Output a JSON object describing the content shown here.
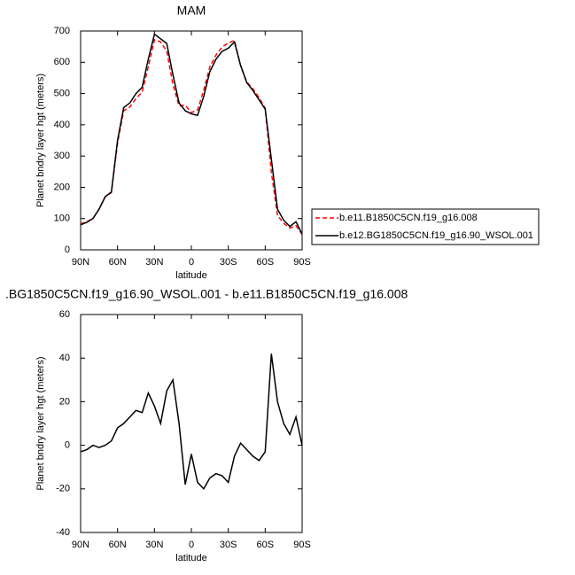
{
  "chart_data": [
    {
      "type": "line",
      "title": "MAM",
      "xlabel": "latitude",
      "ylabel": "Planet bndry layer hgt (meters)",
      "x": [
        90,
        85,
        80,
        75,
        70,
        65,
        60,
        55,
        50,
        45,
        40,
        35,
        30,
        25,
        20,
        15,
        10,
        5,
        0,
        -5,
        -10,
        -15,
        -20,
        -25,
        -30,
        -35,
        -40,
        -45,
        -50,
        -55,
        -60,
        -65,
        -70,
        -75,
        -80,
        -85,
        -90
      ],
      "series": [
        {
          "name": "b.e11.B1850C5CN.f19_g16.008",
          "color": "#ff0000",
          "line_style": "dashed",
          "values": [
            83,
            90,
            100,
            131,
            170,
            183,
            342,
            445,
            457,
            484,
            505,
            586,
            672,
            665,
            635,
            530,
            460,
            463,
            439,
            447,
            510,
            585,
            623,
            649,
            662,
            670,
            589,
            537,
            515,
            487,
            453,
            248,
            110,
            85,
            70,
            77,
            50
          ]
        },
        {
          "name": "b.e12.BG1850C5CN.f19_g16.90_WSOL.001",
          "color": "#000000",
          "line_style": "solid",
          "values": [
            80,
            88,
            100,
            130,
            170,
            185,
            350,
            455,
            470,
            500,
            520,
            610,
            690,
            675,
            660,
            560,
            470,
            445,
            435,
            430,
            490,
            570,
            610,
            635,
            645,
            665,
            590,
            535,
            510,
            480,
            450,
            290,
            130,
            95,
            75,
            90,
            50
          ]
        }
      ],
      "xlim": [
        90,
        -90
      ],
      "xticks": [
        {
          "value": 90,
          "label": "90N"
        },
        {
          "value": 60,
          "label": "60N"
        },
        {
          "value": 30,
          "label": "30N"
        },
        0,
        {
          "value": -30,
          "label": "30S"
        },
        {
          "value": -60,
          "label": "60S"
        },
        {
          "value": -90,
          "label": "90S"
        }
      ],
      "ylim": [
        0,
        700
      ],
      "yticks": [
        0,
        100,
        200,
        300,
        400,
        500,
        600,
        700
      ],
      "legend": "right"
    },
    {
      "type": "line",
      "title": ".BG1850C5CN.f19_g16.90_WSOL.001 - b.e11.B1850C5CN.f19_g16.008",
      "xlabel": "latitude",
      "ylabel": "Planet bndry layer hgt (meters)",
      "x": [
        90,
        85,
        80,
        75,
        70,
        65,
        60,
        55,
        50,
        45,
        40,
        35,
        30,
        25,
        20,
        15,
        10,
        5,
        0,
        -5,
        -10,
        -15,
        -20,
        -25,
        -30,
        -35,
        -40,
        -45,
        -50,
        -55,
        -60,
        -65,
        -70,
        -75,
        -80,
        -85,
        -90
      ],
      "values": [
        -3,
        -2,
        0,
        -1,
        0,
        2,
        8,
        10,
        13,
        16,
        15,
        24,
        18,
        10,
        25,
        30,
        10,
        -18,
        -4,
        -17,
        -20,
        -15,
        -13,
        -14,
        -17,
        -5,
        1,
        -2,
        -5,
        -7,
        -3,
        42,
        20,
        10,
        5,
        13,
        0
      ],
      "color": "#000000",
      "xlim": [
        90,
        -90
      ],
      "xticks": [
        {
          "value": 90,
          "label": "90N"
        },
        {
          "value": 60,
          "label": "60N"
        },
        {
          "value": 30,
          "label": "30N"
        },
        0,
        {
          "value": -30,
          "label": "30S"
        },
        {
          "value": -60,
          "label": "60S"
        },
        {
          "value": -90,
          "label": "90S"
        }
      ],
      "ylim": [
        -40,
        60
      ],
      "yticks": [
        -40,
        -20,
        0,
        20,
        40,
        60
      ]
    }
  ]
}
